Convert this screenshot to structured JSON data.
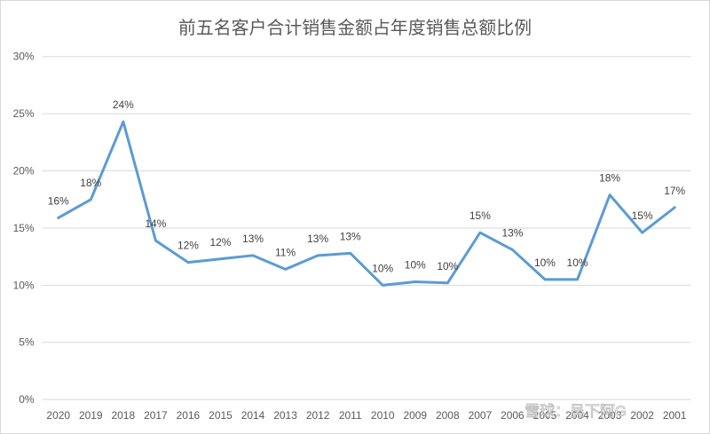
{
  "chart_data": {
    "type": "line",
    "title": "前五名客户合计销售金额占年度销售总额比例",
    "xlabel": "",
    "ylabel": "",
    "ylim": [
      0,
      30
    ],
    "yticks": [
      "0%",
      "5%",
      "10%",
      "15%",
      "20%",
      "25%",
      "30%"
    ],
    "grid": true,
    "legend": "none",
    "categories": [
      "2020",
      "2019",
      "2018",
      "2017",
      "2016",
      "2015",
      "2014",
      "2013",
      "2012",
      "2011",
      "2010",
      "2009",
      "2008",
      "2007",
      "2006",
      "2005",
      "2004",
      "2003",
      "2002",
      "2001"
    ],
    "series": [
      {
        "values": [
          15.9,
          17.5,
          24.3,
          13.9,
          12.0,
          12.3,
          12.6,
          11.4,
          12.6,
          12.8,
          10.0,
          10.3,
          10.2,
          14.6,
          13.1,
          10.5,
          10.5,
          17.9,
          14.6,
          16.8
        ],
        "labels": [
          "16%",
          "18%",
          "24%",
          "14%",
          "12%",
          "12%",
          "13%",
          "11%",
          "13%",
          "13%",
          "10%",
          "10%",
          "10%",
          "15%",
          "13%",
          "10%",
          "10%",
          "18%",
          "15%",
          "17%"
        ],
        "color": "#5b9bd5"
      }
    ]
  },
  "watermark": "雪球：吴下阿G"
}
